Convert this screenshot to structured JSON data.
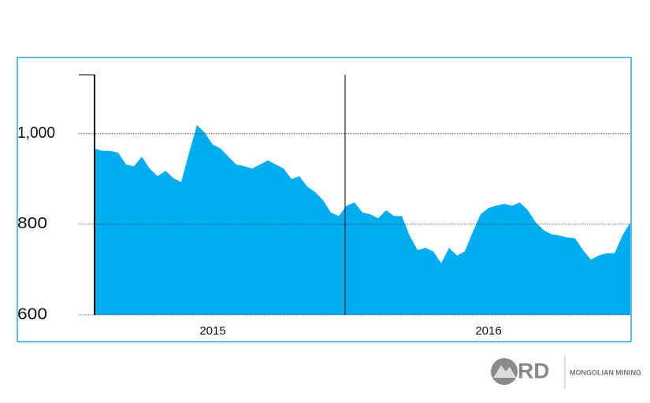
{
  "chart_data": {
    "type": "area",
    "color": "#00aeef",
    "categories": [
      null,
      null,
      null,
      null,
      null,
      null,
      null,
      null,
      null,
      null,
      null,
      null,
      null,
      null,
      null,
      "2015",
      null,
      null,
      null,
      null,
      null,
      null,
      null,
      null,
      null,
      null,
      null,
      null,
      null,
      null,
      null,
      null,
      null,
      null,
      null,
      null,
      null,
      null,
      null,
      null,
      null,
      null,
      null,
      null,
      null,
      null,
      null,
      null,
      null,
      null,
      "2016",
      null,
      null,
      null,
      null,
      null,
      null,
      null,
      null,
      null,
      null,
      null,
      null,
      null,
      null,
      null,
      null,
      null,
      null
    ],
    "values": [
      967,
      962,
      962,
      958,
      932,
      928,
      949,
      923,
      906,
      918,
      902,
      893,
      958,
      1019,
      1002,
      976,
      967,
      949,
      932,
      928,
      923,
      932,
      941,
      932,
      923,
      900,
      906,
      883,
      871,
      853,
      826,
      818,
      841,
      848,
      826,
      822,
      813,
      831,
      818,
      818,
      775,
      743,
      748,
      740,
      714,
      748,
      731,
      740,
      783,
      822,
      836,
      841,
      845,
      841,
      848,
      831,
      804,
      787,
      778,
      775,
      771,
      769,
      743,
      722,
      731,
      736,
      736,
      775,
      804
    ],
    "ylim": [
      600,
      1130
    ],
    "yticks": [
      600,
      800,
      {
        "value": 1000,
        "label": "1,000"
      }
    ],
    "grid": true
  },
  "footer": {
    "logo": "RD",
    "brand": "MONGOLIAN MINING"
  }
}
